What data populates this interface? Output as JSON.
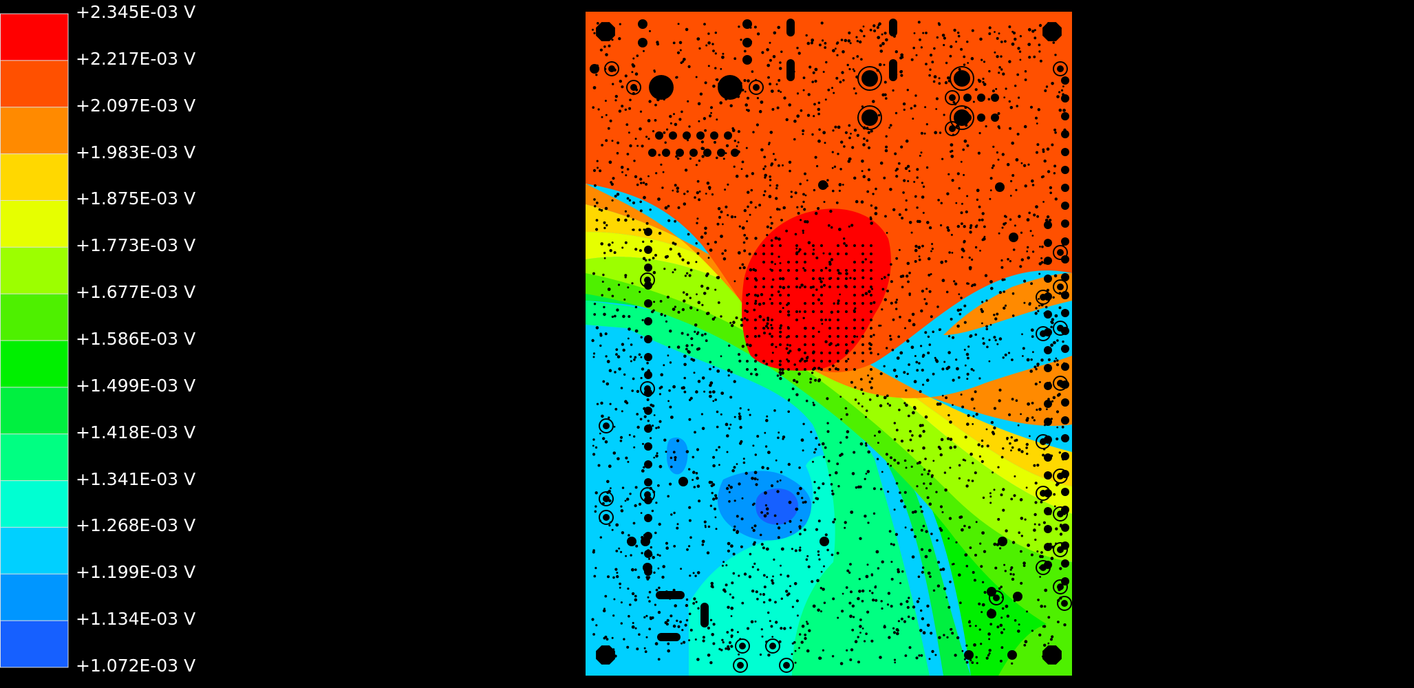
{
  "legend": {
    "unit": "V",
    "levels": [
      {
        "label": "+2.345E-03 V",
        "value": 0.002345,
        "color": "#ff0000"
      },
      {
        "label": "+2.217E-03 V",
        "value": 0.002217,
        "color": "#ff5000"
      },
      {
        "label": "+2.097E-03 V",
        "value": 0.002097,
        "color": "#ff8a00"
      },
      {
        "label": "+1.983E-03 V",
        "value": 0.001983,
        "color": "#ffd800"
      },
      {
        "label": "+1.875E-03 V",
        "value": 0.001875,
        "color": "#e6ff00"
      },
      {
        "label": "+1.773E-03 V",
        "value": 0.001773,
        "color": "#9cff00"
      },
      {
        "label": "+1.677E-03 V",
        "value": 0.001677,
        "color": "#4ef000"
      },
      {
        "label": "+1.586E-03 V",
        "value": 0.001586,
        "color": "#00f000"
      },
      {
        "label": "+1.499E-03 V",
        "value": 0.001499,
        "color": "#00f040"
      },
      {
        "label": "+1.418E-03 V",
        "value": 0.001418,
        "color": "#00ff82"
      },
      {
        "label": "+1.341E-03 V",
        "value": 0.001341,
        "color": "#00ffd2"
      },
      {
        "label": "+1.268E-03 V",
        "value": 0.001268,
        "color": "#00d0ff"
      },
      {
        "label": "+1.199E-03 V",
        "value": 0.001199,
        "color": "#0096ff"
      },
      {
        "label": "+1.134E-03 V",
        "value": 0.001134,
        "color": "#1660ff"
      },
      {
        "label": "+1.072E-03 V",
        "value": 0.001072,
        "color": "#0038ff"
      }
    ]
  },
  "board": {
    "shapes": "pcb-voltage-drop-map",
    "background_color": "#000000",
    "hole_color": "#000000"
  }
}
